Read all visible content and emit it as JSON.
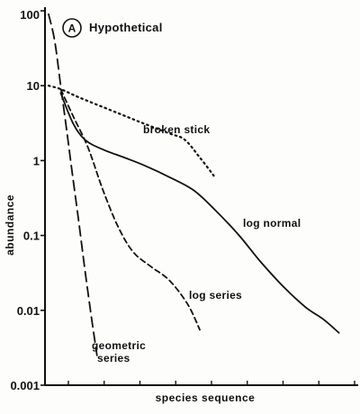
{
  "chart_data": {
    "type": "line",
    "panel_letter": "A",
    "title": "Hypothetical",
    "xlabel": "species sequence",
    "ylabel": "abundance",
    "y_scale": "log",
    "ylim": [
      0.001,
      100
    ],
    "y_ticks": [
      {
        "value": 0.001,
        "label": "0.001"
      },
      {
        "value": 0.01,
        "label": "0.01"
      },
      {
        "value": 0.1,
        "label": "0.1"
      },
      {
        "value": 1,
        "label": "1"
      },
      {
        "value": 10,
        "label": "10"
      },
      {
        "value": 100,
        "label": "100"
      }
    ],
    "x_tick_count": 9,
    "xlim": [
      0,
      100
    ],
    "grid": false,
    "legend": "none (curves labeled directly)",
    "series": [
      {
        "name": "geometric series",
        "label_lines": [
          "geometric",
          "series"
        ],
        "style": "dashed-long",
        "x": [
          0,
          2,
          4,
          6,
          8,
          10,
          12,
          14,
          16
        ],
        "y": [
          90,
          40,
          10,
          2.5,
          0.6,
          0.15,
          0.035,
          0.009,
          0.0025
        ]
      },
      {
        "name": "broken stick",
        "label_lines": [
          "broken stick"
        ],
        "style": "dotted",
        "x": [
          0,
          4,
          10,
          20,
          30,
          40,
          45,
          50,
          55
        ],
        "y": [
          10,
          9,
          7,
          4.8,
          3.3,
          2.3,
          1.9,
          1.1,
          0.6
        ]
      },
      {
        "name": "log normal",
        "label_lines": [
          "log normal"
        ],
        "style": "solid",
        "x": [
          4,
          8,
          12,
          18,
          25,
          32,
          40,
          48,
          55,
          63,
          70,
          78,
          85,
          91,
          96
        ],
        "y": [
          8,
          3.2,
          1.9,
          1.4,
          1.1,
          0.85,
          0.6,
          0.4,
          0.22,
          0.1,
          0.045,
          0.02,
          0.011,
          0.0075,
          0.005
        ]
      },
      {
        "name": "log series",
        "label_lines": [
          "log series"
        ],
        "style": "dashed",
        "x": [
          4,
          8,
          13,
          18,
          23,
          28,
          34,
          40,
          46,
          50
        ],
        "y": [
          9,
          4,
          1.5,
          0.4,
          0.13,
          0.06,
          0.038,
          0.025,
          0.012,
          0.0055
        ]
      }
    ]
  }
}
